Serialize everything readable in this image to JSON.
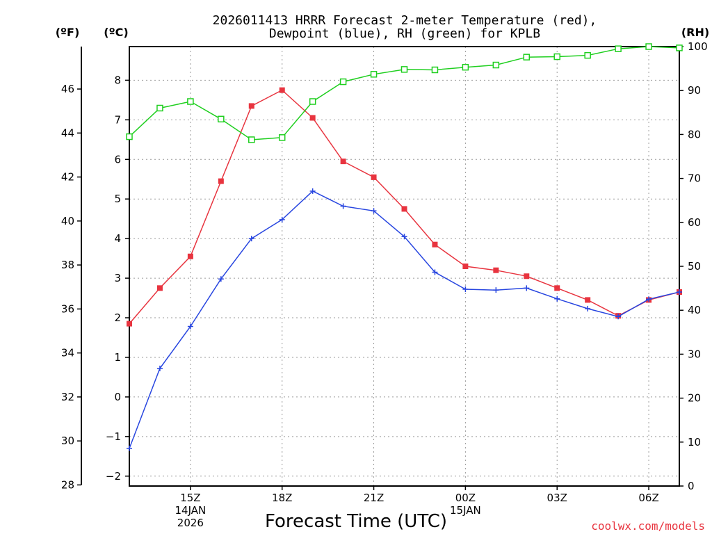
{
  "chart_data": {
    "type": "line",
    "title_line1": "2026011413 HRRR Forecast 2-meter Temperature (red),",
    "title_line2": "Dewpoint (blue), RH (green) for KPLB",
    "xlabel": "Forecast Time (UTC)",
    "credit": "coolwx.com/models",
    "units": {
      "fahrenheit": "(ºF)",
      "celsius": "(ºC)",
      "rh": "(RH)"
    },
    "x_hours": [
      13,
      14,
      15,
      16,
      17,
      18,
      19,
      20,
      21,
      22,
      23,
      24,
      25,
      26,
      27,
      28,
      29,
      30,
      31
    ],
    "x_ticks": [
      {
        "hour": 15,
        "lines": [
          "15Z",
          "14JAN",
          "2026"
        ]
      },
      {
        "hour": 18,
        "lines": [
          "18Z"
        ]
      },
      {
        "hour": 21,
        "lines": [
          "21Z"
        ]
      },
      {
        "hour": 24,
        "lines": [
          "00Z",
          "15JAN"
        ]
      },
      {
        "hour": 27,
        "lines": [
          "03Z"
        ]
      },
      {
        "hour": 30,
        "lines": [
          "06Z"
        ]
      }
    ],
    "xlim": [
      13,
      31
    ],
    "celsius_axis": {
      "range": [
        -2.25,
        8.85
      ],
      "ticks": [
        -2,
        -1,
        0,
        1,
        2,
        3,
        4,
        5,
        6,
        7,
        8
      ]
    },
    "fahrenheit_axis": {
      "ticks": [
        28,
        30,
        32,
        34,
        36,
        38,
        40,
        42,
        44,
        46
      ]
    },
    "rh_axis": {
      "range": [
        0,
        100
      ],
      "ticks": [
        0,
        10,
        20,
        30,
        40,
        50,
        60,
        70,
        80,
        90,
        100
      ]
    },
    "series": [
      {
        "name": "Temperature",
        "unit": "C",
        "color": "#e8343f",
        "marker": "filled-square",
        "values": [
          1.85,
          2.75,
          3.55,
          5.45,
          7.35,
          7.75,
          7.05,
          5.95,
          5.55,
          4.75,
          3.85,
          3.3,
          3.2,
          3.05,
          2.75,
          2.45,
          2.05,
          2.45,
          2.65
        ]
      },
      {
        "name": "Dewpoint",
        "unit": "C",
        "color": "#2846e0",
        "marker": "plus",
        "values": [
          -1.3,
          0.72,
          1.78,
          2.98,
          4.0,
          4.48,
          5.2,
          4.82,
          4.7,
          4.05,
          3.15,
          2.72,
          2.7,
          2.75,
          2.48,
          2.23,
          2.03,
          2.47,
          2.65
        ]
      },
      {
        "name": "RH",
        "unit": "%",
        "color": "#1fcf1f",
        "marker": "open-square",
        "values": [
          79.5,
          86.0,
          87.5,
          83.5,
          78.8,
          79.3,
          87.5,
          92.0,
          93.7,
          94.8,
          94.7,
          95.3,
          95.8,
          97.6,
          97.7,
          98.0,
          99.5,
          100.0,
          99.7
        ]
      }
    ]
  }
}
